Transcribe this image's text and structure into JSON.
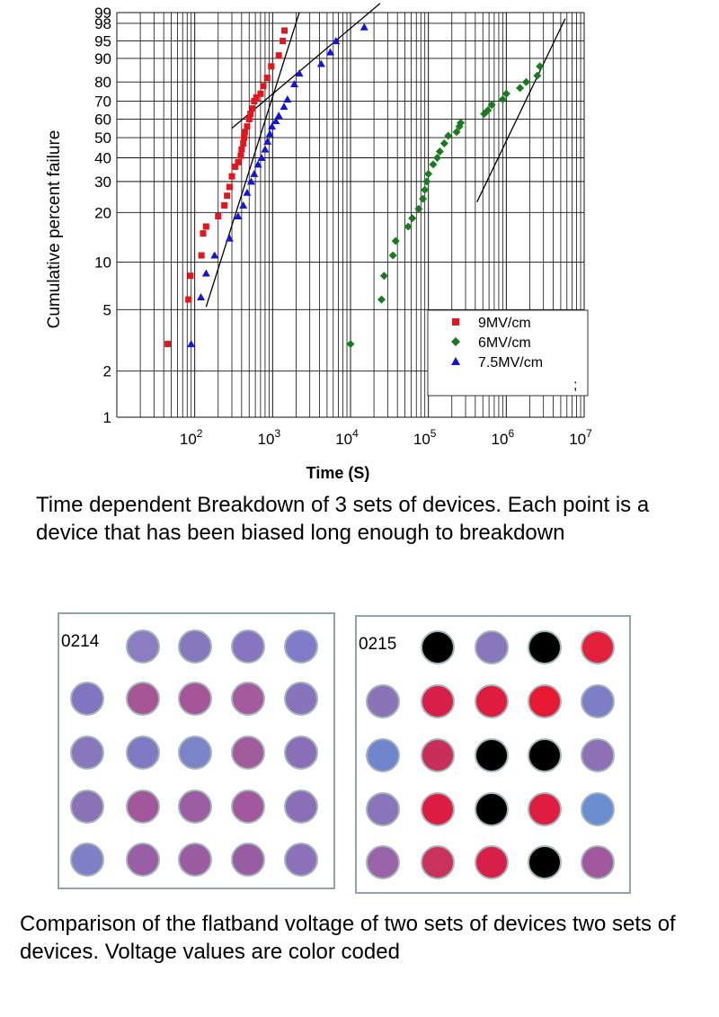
{
  "chart_data": {
    "type": "scatter",
    "title": "",
    "xlabel": "Time (S)",
    "ylabel": "Cumulative percent failure",
    "x_scale": "log",
    "y_scale": "weibull-probability",
    "xlim": [
      10,
      10000000
    ],
    "ylim": [
      1,
      99
    ],
    "x_tick_labels": [
      "10^2",
      "10^3",
      "10^4",
      "10^5",
      "10^6",
      "10^7"
    ],
    "x_tick_values": [
      100,
      1000,
      10000,
      100000,
      1000000,
      10000000
    ],
    "y_ticks": [
      1,
      2,
      5,
      10,
      20,
      30,
      40,
      50,
      60,
      70,
      80,
      90,
      95,
      98,
      99
    ],
    "grid": true,
    "legend_position": "bottom-right",
    "series": [
      {
        "name": "9MV/cm",
        "marker": "square",
        "color": "#e8141b",
        "points": [
          [
            45,
            3
          ],
          [
            83,
            5.8
          ],
          [
            88,
            8.2
          ],
          [
            122,
            11
          ],
          [
            128,
            15
          ],
          [
            140,
            16.5
          ],
          [
            200,
            19
          ],
          [
            240,
            22
          ],
          [
            260,
            25
          ],
          [
            280,
            28
          ],
          [
            300,
            32
          ],
          [
            330,
            36
          ],
          [
            360,
            38
          ],
          [
            390,
            41
          ],
          [
            400,
            44
          ],
          [
            420,
            47
          ],
          [
            430,
            50
          ],
          [
            440,
            53
          ],
          [
            470,
            56
          ],
          [
            500,
            60
          ],
          [
            520,
            63
          ],
          [
            550,
            66
          ],
          [
            580,
            70
          ],
          [
            620,
            72
          ],
          [
            700,
            74
          ],
          [
            760,
            78
          ],
          [
            850,
            82
          ],
          [
            960,
            87
          ],
          [
            1200,
            91
          ],
          [
            1350,
            95
          ],
          [
            1420,
            97
          ]
        ],
        "fit_line": [
          [
            140,
            5.2
          ],
          [
            2200,
            99
          ]
        ]
      },
      {
        "name": "6MV/cm",
        "marker": "diamond",
        "color": "#1a7b1e",
        "points": [
          [
            10000,
            3
          ],
          [
            25000,
            5.8
          ],
          [
            27000,
            8.2
          ],
          [
            35000,
            11
          ],
          [
            38000,
            13.5
          ],
          [
            55000,
            16.5
          ],
          [
            62000,
            18.5
          ],
          [
            75000,
            21
          ],
          [
            85000,
            24
          ],
          [
            90000,
            27
          ],
          [
            95000,
            30
          ],
          [
            100000,
            33
          ],
          [
            115000,
            37
          ],
          [
            130000,
            40
          ],
          [
            140000,
            43
          ],
          [
            160000,
            47
          ],
          [
            180000,
            51
          ],
          [
            230000,
            53
          ],
          [
            250000,
            56
          ],
          [
            260000,
            58
          ],
          [
            520000,
            63
          ],
          [
            580000,
            65
          ],
          [
            650000,
            68
          ],
          [
            900000,
            71
          ],
          [
            1000000,
            74
          ],
          [
            1500000,
            77
          ],
          [
            1800000,
            80
          ],
          [
            2500000,
            83
          ],
          [
            2700000,
            87
          ]
        ],
        "fit_line": [
          [
            420000,
            23
          ],
          [
            5700000,
            98.5
          ]
        ]
      },
      {
        "name": "7.5MV/cm",
        "marker": "triangle",
        "color": "#1515d8",
        "points": [
          [
            90,
            3
          ],
          [
            120,
            6
          ],
          [
            140,
            8.5
          ],
          [
            180,
            11
          ],
          [
            280,
            14
          ],
          [
            360,
            19
          ],
          [
            420,
            22
          ],
          [
            470,
            26
          ],
          [
            530,
            30
          ],
          [
            580,
            33
          ],
          [
            650,
            37
          ],
          [
            720,
            40
          ],
          [
            800,
            44
          ],
          [
            860,
            48
          ],
          [
            920,
            52
          ],
          [
            980,
            56
          ],
          [
            1100,
            59
          ],
          [
            1200,
            62
          ],
          [
            1400,
            67
          ],
          [
            1550,
            71
          ],
          [
            1900,
            79
          ],
          [
            2200,
            84
          ],
          [
            4200,
            88
          ],
          [
            5500,
            92
          ],
          [
            6500,
            95
          ],
          [
            15000,
            97.5
          ]
        ],
        "fit_line": [
          [
            300,
            55
          ],
          [
            24000,
            99.5
          ]
        ]
      }
    ],
    "legend_extra_glyph": ";"
  },
  "captions": {
    "chart": "Time dependent Breakdown of 3 sets of devices. Each point is a device that has been biased long enough to breakdown",
    "wafers": "Comparison of the flatband voltage of two sets of devices two sets of devices. Voltage values are color coded"
  },
  "wafer_maps": [
    {
      "label": "0214",
      "colors": [
        [
          null,
          "#8c7cc1",
          "#8678bd",
          "#8875bf",
          "#7f7dc7"
        ],
        [
          "#8175c1",
          "#a65694",
          "#a45696",
          "#a45a9c",
          "#8874bd"
        ],
        [
          "#8977bd",
          "#7f7ac3",
          "#7d83c9",
          "#a05c9b",
          "#8b6fb6"
        ],
        [
          "#8a72b6",
          "#a2579a",
          "#9c5ea2",
          "#a1589d",
          "#8b6fb6"
        ],
        [
          "#7e7fc6",
          "#985fa5",
          "#9b5da2",
          "#985ca3",
          "#8c72b8"
        ]
      ]
    },
    {
      "label": "0215",
      "colors": [
        [
          null,
          "#000000",
          "#8977bd",
          "#000000",
          "#e2203c"
        ],
        [
          "#8a73b7",
          "#d81f47",
          "#df1c3f",
          "#e61a35",
          "#7d7ec5"
        ],
        [
          "#6f86cd",
          "#c72e58",
          "#000000",
          "#000000",
          "#8d70b5"
        ],
        [
          "#8975ba",
          "#dd1c42",
          "#000000",
          "#de1d40",
          "#6b8ed1"
        ],
        [
          "#9a65a8",
          "#c9325b",
          "#d81f47",
          "#000000",
          "#a2589c"
        ]
      ]
    }
  ]
}
